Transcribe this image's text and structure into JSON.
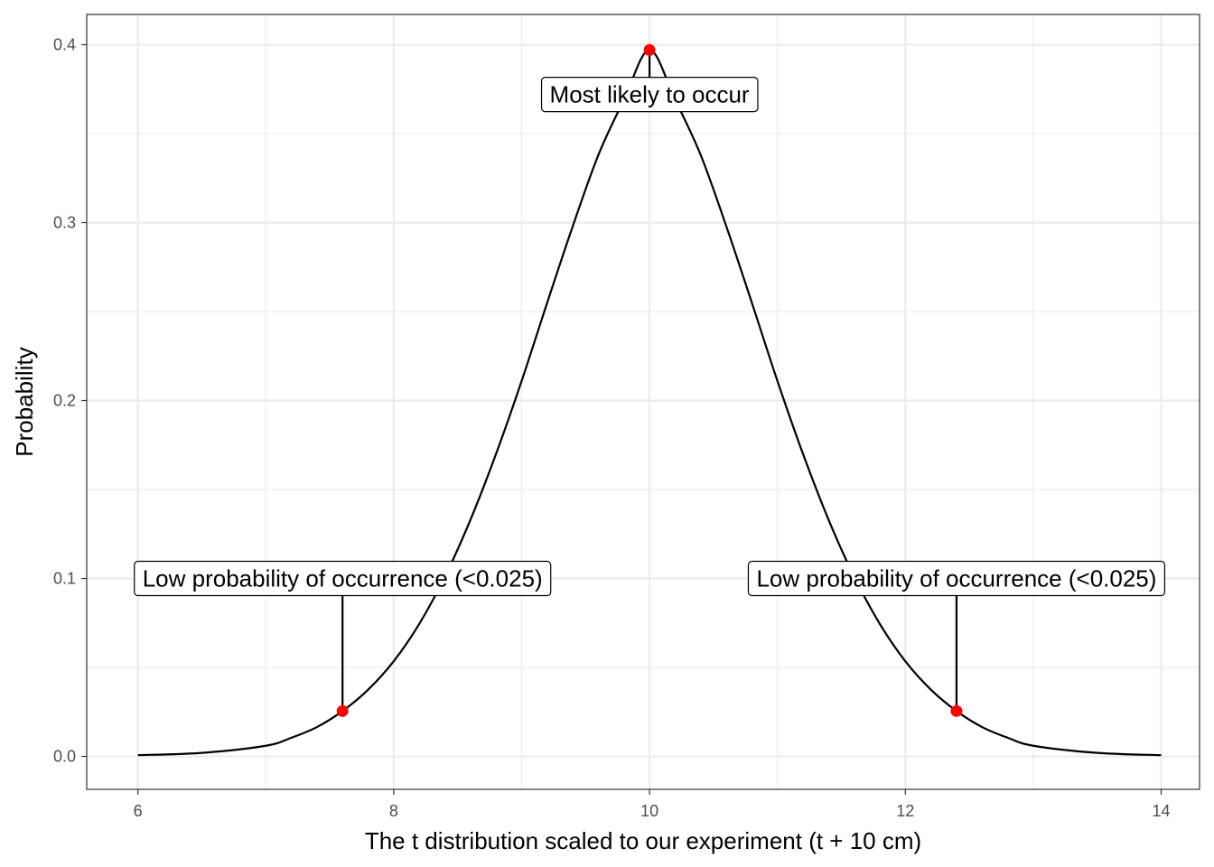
{
  "chart_data": {
    "type": "line",
    "xlabel": "The t distribution scaled to our experiment (t + 10 cm)",
    "ylabel": "Probability",
    "xlim": [
      5.6,
      14.3
    ],
    "ylim": [
      -0.0185,
      0.417
    ],
    "x_ticks": [
      6,
      8,
      10,
      12,
      14
    ],
    "y_ticks": [
      0.0,
      0.1,
      0.2,
      0.3,
      0.4
    ],
    "x_tick_labels": [
      "6",
      "8",
      "10",
      "12",
      "14"
    ],
    "y_tick_labels": [
      "0.0",
      "0.1",
      "0.2",
      "0.3",
      "0.4"
    ],
    "grid": true,
    "legend": "none",
    "series": [
      {
        "color": "#000000",
        "x": [
          6.0,
          6.5,
          7.0,
          7.2,
          7.4,
          7.6,
          7.8,
          8.0,
          8.2,
          8.4,
          8.6,
          8.8,
          9.0,
          9.2,
          9.4,
          9.6,
          9.8,
          10.0,
          10.2,
          10.4,
          10.6,
          10.8,
          11.0,
          11.2,
          11.4,
          11.6,
          11.8,
          12.0,
          12.2,
          12.4,
          12.6,
          12.8,
          13.0,
          13.5,
          14.0
        ],
        "y": [
          0.0007,
          0.002,
          0.006,
          0.0105,
          0.0165,
          0.0255,
          0.0375,
          0.0535,
          0.0745,
          0.101,
          0.133,
          0.17,
          0.211,
          0.255,
          0.298,
          0.338,
          0.369,
          0.397,
          0.369,
          0.338,
          0.298,
          0.255,
          0.211,
          0.17,
          0.133,
          0.101,
          0.0745,
          0.0535,
          0.0375,
          0.0255,
          0.0165,
          0.0105,
          0.006,
          0.002,
          0.0007
        ]
      }
    ],
    "points": [
      {
        "x": 7.6,
        "y": 0.0255,
        "color": "#ff0000"
      },
      {
        "x": 10.0,
        "y": 0.397,
        "color": "#ff0000"
      },
      {
        "x": 12.4,
        "y": 0.0255,
        "color": "#ff0000"
      }
    ],
    "annotations": [
      {
        "text": "Low probability of occurrence (<0.025)",
        "x": 7.6,
        "y": 0.1,
        "point_y": 0.0255
      },
      {
        "text": "Most likely to occur",
        "x": 10.0,
        "y": 0.372,
        "point_y": 0.397
      },
      {
        "text": "Low probability of occurrence (<0.025)",
        "x": 12.4,
        "y": 0.1,
        "point_y": 0.0255
      }
    ]
  }
}
